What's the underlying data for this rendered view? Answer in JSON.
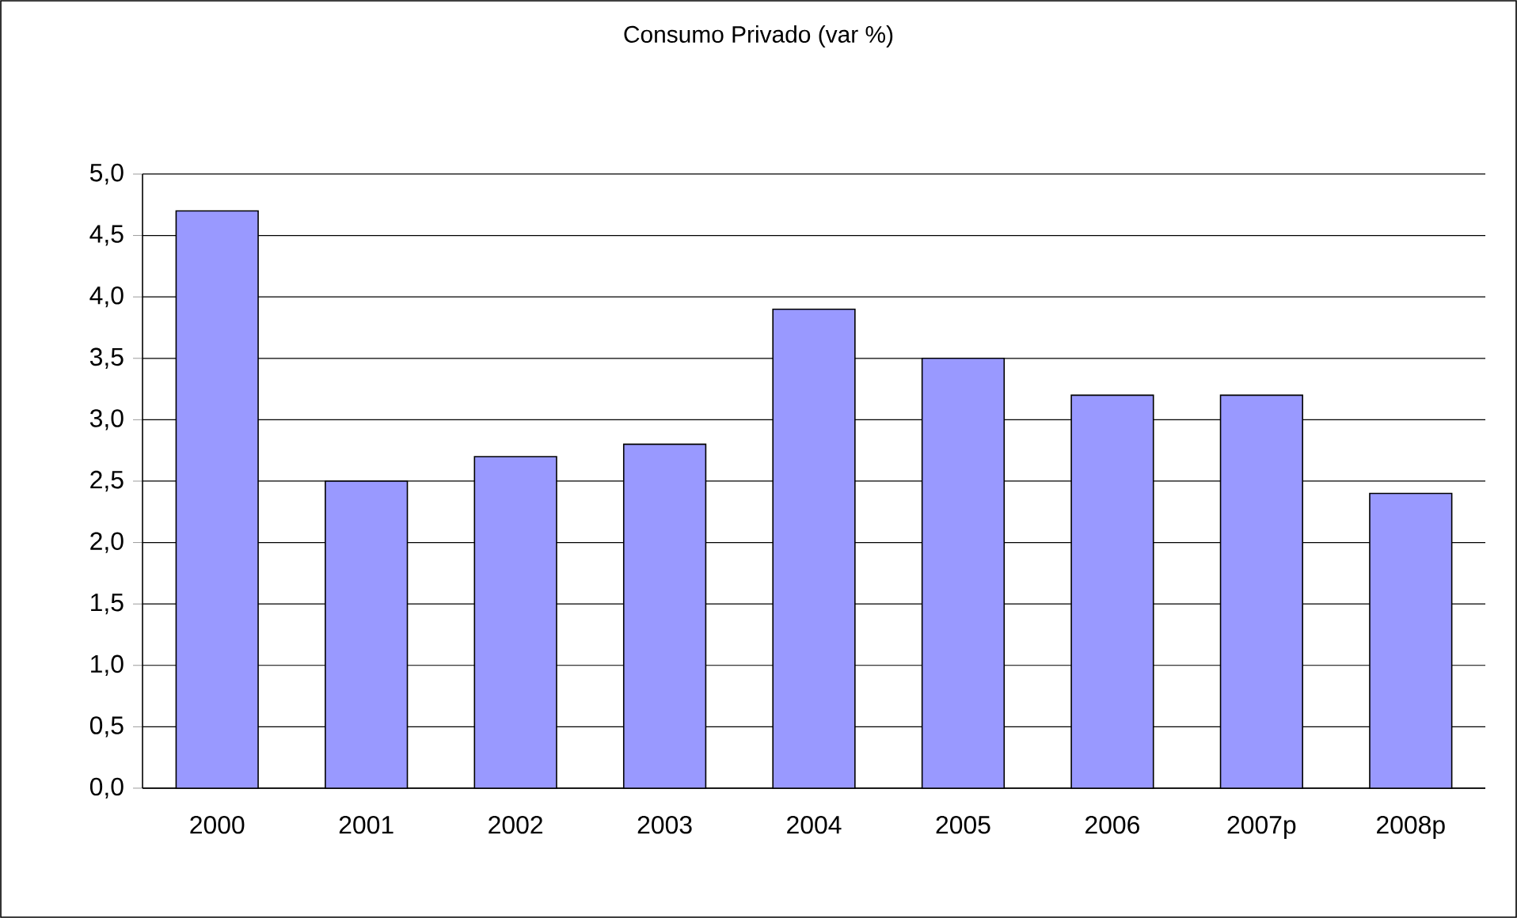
{
  "chart_data": {
    "type": "bar",
    "title": "Consumo Privado (var %)",
    "categories": [
      "2000",
      "2001",
      "2002",
      "2003",
      "2004",
      "2005",
      "2006",
      "2007p",
      "2008p"
    ],
    "values": [
      4.7,
      2.5,
      2.7,
      2.8,
      3.9,
      3.5,
      3.2,
      3.2,
      2.4
    ],
    "color": "#9999ff",
    "ylim": [
      0,
      5
    ],
    "yticks": [
      {
        "value": 0,
        "label": "0,0"
      },
      {
        "value": 0.5,
        "label": "0,5"
      },
      {
        "value": 1,
        "label": "1,0"
      },
      {
        "value": 1.5,
        "label": "1,5"
      },
      {
        "value": 2,
        "label": "2,0"
      },
      {
        "value": 2.5,
        "label": "2,5"
      },
      {
        "value": 3,
        "label": "3,0"
      },
      {
        "value": 3.5,
        "label": "3,5"
      },
      {
        "value": 4,
        "label": "4,0"
      },
      {
        "value": 4.5,
        "label": "4,5"
      },
      {
        "value": 5,
        "label": "5,0"
      }
    ],
    "grid": "y"
  }
}
